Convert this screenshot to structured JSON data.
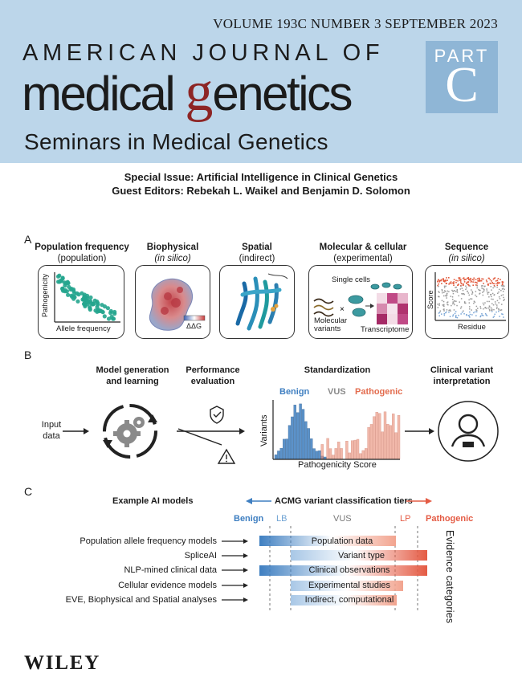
{
  "masthead": {
    "issue_line": "VOLUME 193C   NUMBER 3   SEPTEMBER 2023",
    "journal_line1": "AMERICAN JOURNAL OF",
    "journal_word1": "medical",
    "journal_g": "g",
    "journal_word2_rest": "enetics",
    "part_word": "PART",
    "part_letter": "C",
    "subtitle": "Seminars in Medical Genetics",
    "colors": {
      "band": "#bcd6ea",
      "part_box": "#8fb6d6",
      "g_accent": "#8d2525"
    }
  },
  "special_issue": {
    "line1": "Special Issue: Artificial Intelligence in Clinical Genetics",
    "line2": "Guest Editors: Rebekah L. Waikel and Benjamin D. Solomon"
  },
  "panel_a": {
    "letter": "A",
    "cards": [
      {
        "title": "Population frequency",
        "subtitle": "(population)",
        "ylabel": "Pathogenicity",
        "xlabel": "Allele frequency"
      },
      {
        "title": "Biophysical",
        "subtitle": "(in silico)",
        "legend": "ΔΔG"
      },
      {
        "title": "Spatial",
        "subtitle": "(indirect)"
      },
      {
        "title": "Molecular & cellular",
        "subtitle": "(experimental)",
        "label_cells": "Single cells",
        "label_variants": "Molecular\nvariants",
        "label_transcriptome": "Transcriptome"
      },
      {
        "title": "Sequence",
        "subtitle": "(in silico)",
        "ylabel": "Score",
        "xlabel": "Residue"
      }
    ]
  },
  "panel_b": {
    "letter": "B",
    "step1": "Model generation\nand learning",
    "step2": "Performance\nevaluation",
    "step3": "Standardization",
    "step4": "Clinical variant\ninterpretation",
    "input": "Input\ndata",
    "legend_benign": "Benign",
    "legend_vus": "VUS",
    "legend_pathogenic": "Pathogenic",
    "ylabel": "Variants",
    "xlabel": "Pathogenicity Score",
    "colors": {
      "benign": "#3f7fc1",
      "vus": "#8a8a8a",
      "pathogenic": "#e36c4e"
    }
  },
  "panel_c": {
    "letter": "C",
    "models_header": "Example AI models",
    "tiers_header": "ACMG variant classification tiers",
    "tiers": {
      "benign": "Benign",
      "lb": "LB",
      "vus": "VUS",
      "lp": "LP",
      "pathogenic": "Pathogenic"
    },
    "models": [
      "Population allele frequency models",
      "SpliceAI",
      "NLP-mined clinical data",
      "Cellular evidence models",
      "EVE, Biophysical and Spatial analyses"
    ],
    "evidence": [
      "Population data",
      "Variant type",
      "Clinical observations",
      "Experimental studies",
      "Indirect, computational"
    ],
    "side_label": "Evidence categories",
    "colors": {
      "blue": "#3f7fc1",
      "blue_light": "#6fa3d4",
      "red": "#e45b44",
      "red_light": "#f2a48f"
    }
  },
  "publisher": "WILEY"
}
